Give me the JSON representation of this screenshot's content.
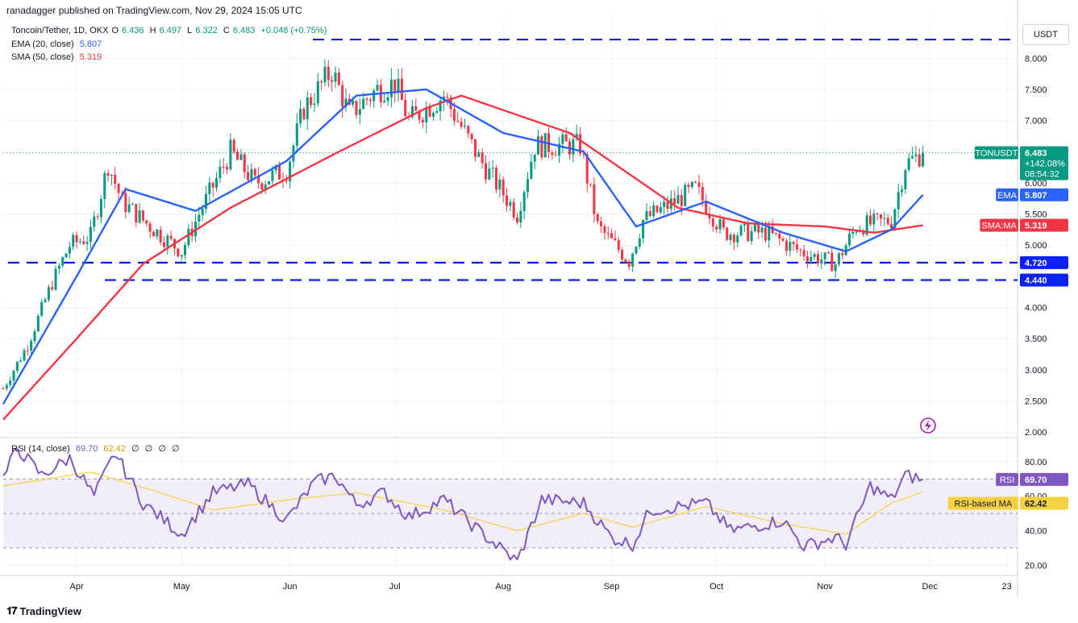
{
  "header": {
    "published": "ranadagger published on TradingView.com, Nov 29, 2024 15:05 UTC"
  },
  "legend": {
    "symbol": "Toncoin/Tether, 1D, OKX",
    "open_label": "O",
    "open": "6.436",
    "high_label": "H",
    "high": "6.497",
    "low_label": "L",
    "low": "6.322",
    "close_label": "C",
    "close": "6.483",
    "change": "+0.048 (+0.75%)",
    "ema_label": "EMA (20, close)",
    "ema_value": "5.807",
    "sma_label": "SMA (50, close)",
    "sma_value": "5.319"
  },
  "currency_button": "USDT",
  "rsi_legend": {
    "label": "RSI (14, close)",
    "value": "69.70",
    "ma_value": "62.42",
    "extras": [
      "∅",
      "∅",
      "∅",
      "∅"
    ]
  },
  "brand": {
    "name": "TradingView"
  },
  "colors": {
    "up": "#089981",
    "down": "#f23645",
    "ema": "#2962ff",
    "sma": "#f23645",
    "level": "#0b21f5",
    "rsi": "#7e57c2",
    "rsi_ma": "#f5d142",
    "rsi_band": "#ede7f6"
  },
  "chart_data": [
    {
      "type": "candlestick",
      "title": "Toncoin/Tether, 1D, OKX",
      "y_axis_ticks": [
        "8.000",
        "7.500",
        "7.000",
        "6.000",
        "5.500",
        "5.000",
        "4.000",
        "3.500",
        "3.000",
        "2.500",
        "2.000"
      ],
      "ylim": [
        1.95,
        8.65
      ],
      "x_axis_ticks": [
        "Apr",
        "May",
        "Jun",
        "Jul",
        "Aug",
        "Sep",
        "Oct",
        "Nov",
        "Dec",
        "23"
      ],
      "x_range": [
        "2024-03-11",
        "2024-12-27"
      ],
      "grid": true,
      "ohlc_anchors": [
        {
          "date": "2024-03-11",
          "close": 2.7
        },
        {
          "date": "2024-03-18",
          "close": 3.4
        },
        {
          "date": "2024-03-25",
          "close": 4.4
        },
        {
          "date": "2024-03-30",
          "close": 5.0
        },
        {
          "date": "2024-04-05",
          "close": 5.15
        },
        {
          "date": "2024-04-10",
          "close": 6.3
        },
        {
          "date": "2024-04-14",
          "close": 5.7
        },
        {
          "date": "2024-04-22",
          "close": 5.3
        },
        {
          "date": "2024-05-01",
          "close": 4.9
        },
        {
          "date": "2024-05-06",
          "close": 5.5
        },
        {
          "date": "2024-05-15",
          "close": 6.5
        },
        {
          "date": "2024-05-22",
          "close": 6.0
        },
        {
          "date": "2024-05-31",
          "close": 6.2
        },
        {
          "date": "2024-06-05",
          "close": 7.2
        },
        {
          "date": "2024-06-13",
          "close": 7.8
        },
        {
          "date": "2024-06-18",
          "close": 7.1
        },
        {
          "date": "2024-06-26",
          "close": 7.5
        },
        {
          "date": "2024-07-01",
          "close": 7.6
        },
        {
          "date": "2024-07-05",
          "close": 7.0
        },
        {
          "date": "2024-07-15",
          "close": 7.4
        },
        {
          "date": "2024-07-25",
          "close": 6.4
        },
        {
          "date": "2024-08-05",
          "close": 5.5
        },
        {
          "date": "2024-08-10",
          "close": 6.6
        },
        {
          "date": "2024-08-23",
          "close": 6.6
        },
        {
          "date": "2024-08-28",
          "close": 5.3
        },
        {
          "date": "2024-09-06",
          "close": 4.75
        },
        {
          "date": "2024-09-10",
          "close": 5.4
        },
        {
          "date": "2024-09-25",
          "close": 5.9
        },
        {
          "date": "2024-10-03",
          "close": 5.2
        },
        {
          "date": "2024-10-15",
          "close": 5.2
        },
        {
          "date": "2024-10-25",
          "close": 4.9
        },
        {
          "date": "2024-11-04",
          "close": 4.7
        },
        {
          "date": "2024-11-10",
          "close": 5.3
        },
        {
          "date": "2024-11-20",
          "close": 5.4
        },
        {
          "date": "2024-11-24",
          "close": 6.3
        },
        {
          "date": "2024-11-29",
          "close": 6.483
        }
      ],
      "horizontal_levels": [
        8.3,
        4.72,
        4.44
      ],
      "series": [
        {
          "name": "EMA (20, close)",
          "last": 5.807,
          "badge": "EMA",
          "anchors": [
            {
              "date": "2024-03-11",
              "value": 2.45
            },
            {
              "date": "2024-04-01",
              "value": 4.5
            },
            {
              "date": "2024-04-15",
              "value": 5.9
            },
            {
              "date": "2024-05-05",
              "value": 5.55
            },
            {
              "date": "2024-05-31",
              "value": 6.35
            },
            {
              "date": "2024-06-20",
              "value": 7.4
            },
            {
              "date": "2024-07-10",
              "value": 7.5
            },
            {
              "date": "2024-08-01",
              "value": 6.8
            },
            {
              "date": "2024-08-24",
              "value": 6.5
            },
            {
              "date": "2024-09-08",
              "value": 5.3
            },
            {
              "date": "2024-09-28",
              "value": 5.7
            },
            {
              "date": "2024-10-20",
              "value": 5.2
            },
            {
              "date": "2024-11-07",
              "value": 4.9
            },
            {
              "date": "2024-11-20",
              "value": 5.25
            },
            {
              "date": "2024-11-29",
              "value": 5.807
            }
          ]
        },
        {
          "name": "SMA (50, close)",
          "last": 5.319,
          "badge": "SMA:MA",
          "anchors": [
            {
              "date": "2024-03-11",
              "value": 2.2
            },
            {
              "date": "2024-04-01",
              "value": 3.5
            },
            {
              "date": "2024-04-20",
              "value": 4.7
            },
            {
              "date": "2024-05-15",
              "value": 5.6
            },
            {
              "date": "2024-06-15",
              "value": 6.5
            },
            {
              "date": "2024-07-10",
              "value": 7.2
            },
            {
              "date": "2024-07-20",
              "value": 7.4
            },
            {
              "date": "2024-08-20",
              "value": 6.8
            },
            {
              "date": "2024-09-20",
              "value": 5.6
            },
            {
              "date": "2024-10-10",
              "value": 5.35
            },
            {
              "date": "2024-11-01",
              "value": 5.3
            },
            {
              "date": "2024-11-15",
              "value": 5.2
            },
            {
              "date": "2024-11-29",
              "value": 5.319
            }
          ]
        }
      ],
      "price_badges": [
        {
          "label": "TONUSDT",
          "value": "6.483",
          "sub1": "+142.08%",
          "sub2": "08:54:32"
        },
        {
          "label": "EMA",
          "value": "5.807"
        },
        {
          "label": "SMA:MA",
          "value": "5.319"
        },
        {
          "label": "",
          "value": "4.720"
        },
        {
          "label": "",
          "value": "4.440"
        }
      ]
    },
    {
      "type": "line",
      "title": "RSI (14, close)",
      "y_axis_ticks": [
        "80.00",
        "60.00",
        "40.00",
        "20.00"
      ],
      "ylim": [
        15,
        93
      ],
      "band": [
        30,
        70
      ],
      "series": [
        {
          "name": "RSI",
          "last": 69.7,
          "anchors": [
            {
              "date": "2024-03-11",
              "value": 70
            },
            {
              "date": "2024-03-15",
              "value": 88
            },
            {
              "date": "2024-03-22",
              "value": 72
            },
            {
              "date": "2024-03-30",
              "value": 82
            },
            {
              "date": "2024-04-06",
              "value": 60
            },
            {
              "date": "2024-04-12",
              "value": 85
            },
            {
              "date": "2024-04-20",
              "value": 56
            },
            {
              "date": "2024-05-01",
              "value": 38
            },
            {
              "date": "2024-05-10",
              "value": 62
            },
            {
              "date": "2024-05-20",
              "value": 67
            },
            {
              "date": "2024-05-31",
              "value": 46
            },
            {
              "date": "2024-06-08",
              "value": 68
            },
            {
              "date": "2024-06-14",
              "value": 72
            },
            {
              "date": "2024-06-20",
              "value": 55
            },
            {
              "date": "2024-06-28",
              "value": 62
            },
            {
              "date": "2024-07-05",
              "value": 48
            },
            {
              "date": "2024-07-15",
              "value": 58
            },
            {
              "date": "2024-07-25",
              "value": 40
            },
            {
              "date": "2024-08-05",
              "value": 22
            },
            {
              "date": "2024-08-12",
              "value": 58
            },
            {
              "date": "2024-08-24",
              "value": 56
            },
            {
              "date": "2024-09-01",
              "value": 36
            },
            {
              "date": "2024-09-07",
              "value": 32
            },
            {
              "date": "2024-09-12",
              "value": 52
            },
            {
              "date": "2024-09-28",
              "value": 56
            },
            {
              "date": "2024-10-05",
              "value": 40
            },
            {
              "date": "2024-10-20",
              "value": 46
            },
            {
              "date": "2024-10-26",
              "value": 31
            },
            {
              "date": "2024-11-04",
              "value": 36
            },
            {
              "date": "2024-11-07",
              "value": 32
            },
            {
              "date": "2024-11-14",
              "value": 66
            },
            {
              "date": "2024-11-20",
              "value": 58
            },
            {
              "date": "2024-11-24",
              "value": 72
            },
            {
              "date": "2024-11-29",
              "value": 69.7
            }
          ]
        },
        {
          "name": "RSI-based MA",
          "last": 62.42,
          "anchors": [
            {
              "date": "2024-03-11",
              "value": 66
            },
            {
              "date": "2024-04-05",
              "value": 74
            },
            {
              "date": "2024-04-25",
              "value": 62
            },
            {
              "date": "2024-05-10",
              "value": 52
            },
            {
              "date": "2024-06-01",
              "value": 58
            },
            {
              "date": "2024-06-20",
              "value": 62
            },
            {
              "date": "2024-07-15",
              "value": 52
            },
            {
              "date": "2024-08-05",
              "value": 40
            },
            {
              "date": "2024-08-24",
              "value": 50
            },
            {
              "date": "2024-09-07",
              "value": 42
            },
            {
              "date": "2024-09-28",
              "value": 54
            },
            {
              "date": "2024-10-20",
              "value": 44
            },
            {
              "date": "2024-11-07",
              "value": 38
            },
            {
              "date": "2024-11-20",
              "value": 56
            },
            {
              "date": "2024-11-29",
              "value": 62.42
            }
          ]
        }
      ],
      "badges": [
        {
          "label": "RSI",
          "value": "69.70"
        },
        {
          "label": "RSI-based MA",
          "value": "62.42"
        }
      ]
    }
  ]
}
